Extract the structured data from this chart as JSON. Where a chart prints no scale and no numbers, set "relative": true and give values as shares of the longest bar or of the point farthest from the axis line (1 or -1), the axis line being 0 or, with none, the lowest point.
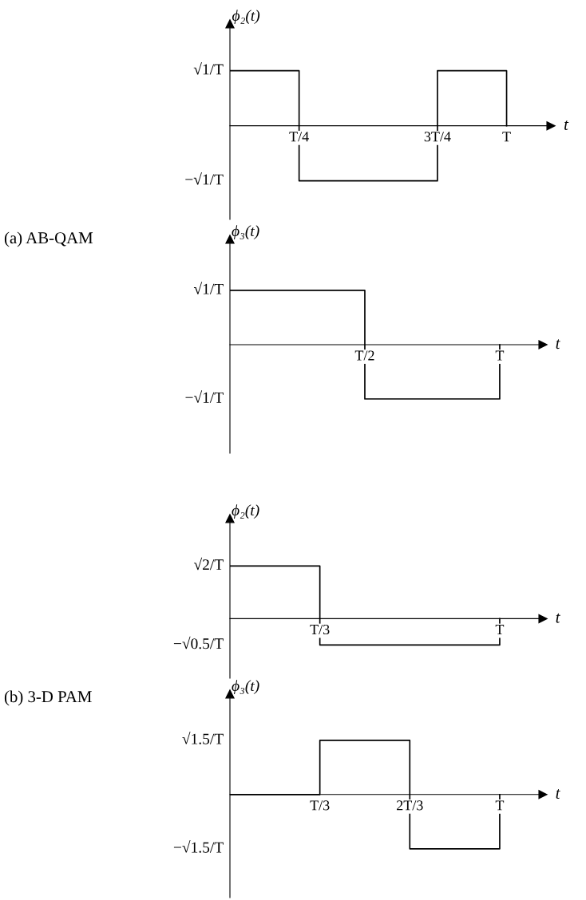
{
  "chart_data": [
    {
      "type": "step",
      "relative": true,
      "ylabel": "ϕ₂(t)",
      "xlabel": "t",
      "categories": [
        null,
        "T/4",
        null,
        "3T/4",
        "T"
      ],
      "series": [
        {
          "color": "#000000",
          "values": [
            1,
            -1,
            -1,
            1,
            0
          ]
        }
      ],
      "annotations": [
        "√1/T",
        "−√1/T",
        "(a) AB-QAM"
      ]
    },
    {
      "type": "step",
      "relative": true,
      "ylabel": "ϕ₃(t)",
      "xlabel": "t",
      "categories": [
        null,
        "T/2",
        "T"
      ],
      "series": [
        {
          "color": "#000000",
          "values": [
            1,
            -1,
            0
          ]
        }
      ],
      "annotations": [
        "√1/T",
        "−√1/T"
      ]
    },
    {
      "type": "step",
      "relative": true,
      "ylabel": "ϕ₂(t)",
      "xlabel": "t",
      "categories": [
        null,
        "T/3",
        null,
        "T"
      ],
      "series": [
        {
          "color": "#000000",
          "values": [
            1,
            -0.5,
            -0.5,
            0
          ]
        }
      ],
      "annotations": [
        "√2/T",
        "−√0.5/T",
        "(b) 3-D PAM"
      ]
    },
    {
      "type": "step",
      "relative": true,
      "ylabel": "ϕ₃(t)",
      "xlabel": "t",
      "categories": [
        null,
        "T/3",
        "2T/3",
        "T"
      ],
      "series": [
        {
          "color": "#000000",
          "values": [
            0,
            1,
            -1,
            0
          ]
        }
      ],
      "annotations": [
        "√1.5/T",
        "−√1.5/T"
      ]
    }
  ]
}
